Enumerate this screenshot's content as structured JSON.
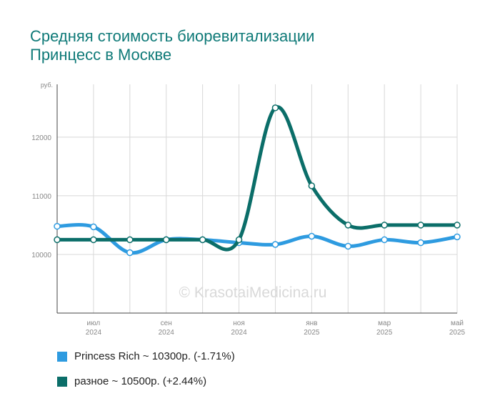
{
  "chart_data": {
    "type": "line",
    "title_line1": "Средняя стоимость биоревитализации",
    "title_line2": "Принцесс в Москве",
    "y_unit": "руб.",
    "ylim": [
      9000,
      12900
    ],
    "y_ticks": [
      10000,
      11000,
      12000
    ],
    "x_months": [
      "",
      "июл",
      "",
      "сен",
      "",
      "ноя",
      "",
      "янв",
      "",
      "мар",
      "",
      "май"
    ],
    "x_years": [
      "",
      "2024",
      "",
      "2024",
      "",
      "2024",
      "",
      "2025",
      "",
      "2025",
      "",
      "2025"
    ],
    "series": [
      {
        "name": "Princess Rich",
        "legend": "Princess Rich ~ 10300р. (-1.71%)",
        "color": "#2e9be0",
        "values": [
          10480,
          10470,
          10030,
          10250,
          10250,
          10200,
          10170,
          10310,
          10140,
          10250,
          10200,
          10300
        ]
      },
      {
        "name": "разное",
        "legend": "разное ~ 10500р. (+2.44%)",
        "color": "#0b6e69",
        "values": [
          10250,
          10250,
          10250,
          10250,
          10250,
          10250,
          12500,
          11170,
          10500,
          10500,
          10500,
          10500
        ]
      }
    ],
    "grid": true,
    "legend_position": "bottom-left",
    "watermark": "© KrasotaiMedicina.ru"
  }
}
